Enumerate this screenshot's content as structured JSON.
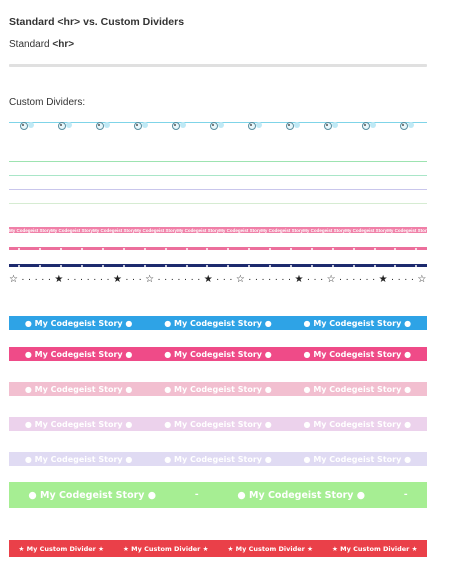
{
  "header": {
    "title": "Standard <hr>  vs.  Custom Dividers",
    "standard_prefix": "Standard ",
    "standard_tag": "<hr>",
    "custom_label": "Custom Dividers:"
  },
  "dividers": {
    "pink_small_text": "My Codegeist Story",
    "story_text": "● My Codegeist Story ●",
    "green_text": "● My Codegeist Story ●",
    "green_sep": "-",
    "custom_text": "★ My Custom Divider ★",
    "star_filled": "★",
    "star_outline": "☆",
    "dot": "·"
  },
  "colors": {
    "blue": "#2ea3e6",
    "magenta": "#ef4b88",
    "light_pink": "#f2bfd0",
    "lavender_pink": "#ecd2ec",
    "lavender": "#e0dbf3",
    "green": "#a6ee93",
    "red": "#ea4049",
    "navy": "#1d2a6e"
  }
}
